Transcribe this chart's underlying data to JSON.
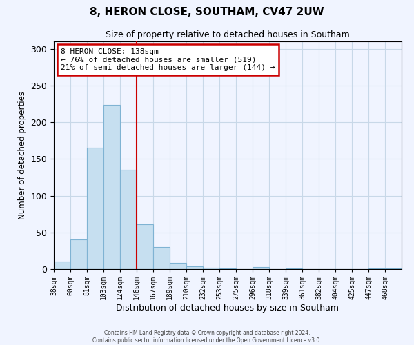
{
  "title": "8, HERON CLOSE, SOUTHAM, CV47 2UW",
  "subtitle": "Size of property relative to detached houses in Southam",
  "xlabel": "Distribution of detached houses by size in Southam",
  "ylabel": "Number of detached properties",
  "bin_labels": [
    "38sqm",
    "60sqm",
    "81sqm",
    "103sqm",
    "124sqm",
    "146sqm",
    "167sqm",
    "189sqm",
    "210sqm",
    "232sqm",
    "253sqm",
    "275sqm",
    "296sqm",
    "318sqm",
    "339sqm",
    "361sqm",
    "382sqm",
    "404sqm",
    "425sqm",
    "447sqm",
    "468sqm"
  ],
  "bin_counts": [
    10,
    40,
    165,
    224,
    135,
    61,
    30,
    8,
    4,
    2,
    1,
    0,
    3,
    0,
    1,
    0,
    0,
    0,
    0,
    1,
    1
  ],
  "bar_color": "#c6dff0",
  "bar_edge_color": "#7fb3d3",
  "bar_width": 1.0,
  "vline_color": "#cc0000",
  "vline_pos": 5,
  "ylim": [
    0,
    310
  ],
  "yticks": [
    0,
    50,
    100,
    150,
    200,
    250,
    300
  ],
  "annotation_text": "8 HERON CLOSE: 138sqm\n← 76% of detached houses are smaller (519)\n21% of semi-detached houses are larger (144) →",
  "annotation_box_color": "#ffffff",
  "annotation_box_edge_color": "#cc0000",
  "footer_line1": "Contains HM Land Registry data © Crown copyright and database right 2024.",
  "footer_line2": "Contains public sector information licensed under the Open Government Licence v3.0.",
  "background_color": "#f0f4ff",
  "grid_color": "#c8d8e8"
}
